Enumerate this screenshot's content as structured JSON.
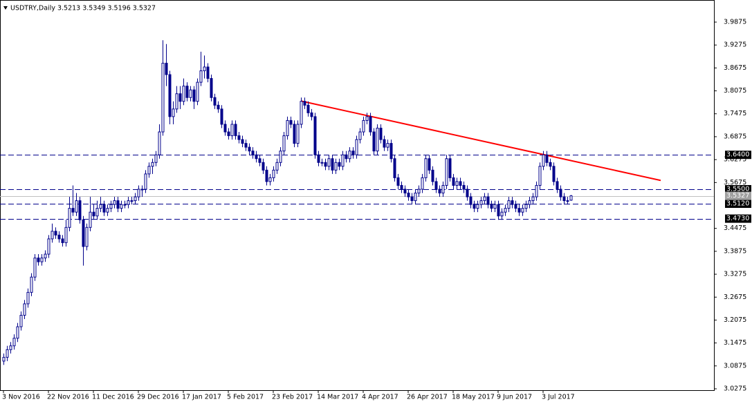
{
  "chart_data": {
    "type": "candlestick",
    "title": "USDTRY,Daily  3.5213 3.5349 3.5196 3.5327",
    "categories": [
      "3 Nov 2016",
      null,
      null,
      null,
      null,
      null,
      null,
      null,
      null,
      null,
      null,
      null,
      null,
      "22 Nov 2016",
      null,
      null,
      null,
      null,
      null,
      null,
      null,
      null,
      null,
      null,
      null,
      null,
      "11 Dec 2016",
      null,
      null,
      null,
      null,
      null,
      null,
      null,
      null,
      null,
      null,
      null,
      null,
      "29 Dec 2016",
      null,
      null,
      null,
      null,
      null,
      null,
      null,
      null,
      null,
      null,
      null,
      null,
      "17 Jan 2017",
      null,
      null,
      null,
      null,
      null,
      null,
      null,
      null,
      null,
      null,
      null,
      null,
      "5 Feb 2017",
      null,
      null,
      null,
      null,
      null,
      null,
      null,
      null,
      null,
      null,
      null,
      null,
      "23 Feb 2017",
      null,
      null,
      null,
      null,
      null,
      null,
      null,
      null,
      null,
      null,
      null,
      null,
      "14 Mar 2017",
      null,
      null,
      null,
      null,
      null,
      null,
      null,
      null,
      null,
      null,
      null,
      null,
      "4 Apr 2017",
      null,
      null,
      null,
      null,
      null,
      null,
      null,
      null,
      null,
      null,
      null,
      null,
      "26 Apr 2017",
      null,
      null,
      null,
      null,
      null,
      null,
      null,
      null,
      null,
      null,
      null,
      null,
      "18 May 2017",
      null,
      null,
      null,
      null,
      null,
      null,
      null,
      null,
      null,
      null,
      null,
      null,
      "9 Jun 2017",
      null,
      null,
      null,
      null,
      null,
      null,
      null,
      null,
      null,
      null,
      null,
      null,
      "3 Jul 2017",
      null,
      null,
      null,
      null,
      null,
      null,
      null,
      null
    ],
    "ohlc": [
      [
        3.1,
        3.12,
        3.09,
        3.11
      ],
      [
        3.11,
        3.14,
        3.1,
        3.13
      ],
      [
        3.13,
        3.15,
        3.12,
        3.14
      ],
      [
        3.14,
        3.17,
        3.13,
        3.16
      ],
      [
        3.16,
        3.2,
        3.15,
        3.19
      ],
      [
        3.19,
        3.23,
        3.18,
        3.22
      ],
      [
        3.22,
        3.26,
        3.21,
        3.25
      ],
      [
        3.25,
        3.29,
        3.24,
        3.28
      ],
      [
        3.28,
        3.33,
        3.27,
        3.32
      ],
      [
        3.32,
        3.38,
        3.31,
        3.37
      ],
      [
        3.37,
        3.38,
        3.35,
        3.36
      ],
      [
        3.36,
        3.38,
        3.35,
        3.37
      ],
      [
        3.37,
        3.39,
        3.36,
        3.38
      ],
      [
        3.38,
        3.43,
        3.37,
        3.42
      ],
      [
        3.42,
        3.46,
        3.41,
        3.44
      ],
      [
        3.44,
        3.45,
        3.42,
        3.43
      ],
      [
        3.43,
        3.44,
        3.41,
        3.42
      ],
      [
        3.42,
        3.43,
        3.4,
        3.41
      ],
      [
        3.41,
        3.47,
        3.4,
        3.45
      ],
      [
        3.45,
        3.53,
        3.44,
        3.5
      ],
      [
        3.5,
        3.56,
        3.48,
        3.49
      ],
      [
        3.49,
        3.54,
        3.48,
        3.52
      ],
      [
        3.52,
        3.53,
        3.46,
        3.47
      ],
      [
        3.47,
        3.48,
        3.35,
        3.4
      ],
      [
        3.4,
        3.46,
        3.39,
        3.45
      ],
      [
        3.45,
        3.53,
        3.44,
        3.49
      ],
      [
        3.49,
        3.51,
        3.47,
        3.48
      ],
      [
        3.48,
        3.52,
        3.47,
        3.5
      ],
      [
        3.5,
        3.53,
        3.49,
        3.51
      ],
      [
        3.51,
        3.52,
        3.48,
        3.49
      ],
      [
        3.49,
        3.51,
        3.48,
        3.5
      ],
      [
        3.5,
        3.52,
        3.49,
        3.51
      ],
      [
        3.51,
        3.53,
        3.5,
        3.52
      ],
      [
        3.52,
        3.53,
        3.49,
        3.5
      ],
      [
        3.5,
        3.52,
        3.49,
        3.51
      ],
      [
        3.51,
        3.52,
        3.5,
        3.51
      ],
      [
        3.51,
        3.53,
        3.5,
        3.52
      ],
      [
        3.52,
        3.53,
        3.51,
        3.52
      ],
      [
        3.52,
        3.54,
        3.51,
        3.53
      ],
      [
        3.53,
        3.56,
        3.52,
        3.55
      ],
      [
        3.55,
        3.56,
        3.53,
        3.55
      ],
      [
        3.55,
        3.6,
        3.54,
        3.59
      ],
      [
        3.59,
        3.62,
        3.58,
        3.61
      ],
      [
        3.61,
        3.63,
        3.59,
        3.62
      ],
      [
        3.62,
        3.65,
        3.61,
        3.64
      ],
      [
        3.64,
        3.72,
        3.63,
        3.7
      ],
      [
        3.7,
        3.94,
        3.69,
        3.88
      ],
      [
        3.88,
        3.93,
        3.82,
        3.85
      ],
      [
        3.85,
        3.86,
        3.72,
        3.74
      ],
      [
        3.74,
        3.78,
        3.72,
        3.76
      ],
      [
        3.76,
        3.82,
        3.75,
        3.8
      ],
      [
        3.8,
        3.82,
        3.76,
        3.78
      ],
      [
        3.78,
        3.84,
        3.77,
        3.82
      ],
      [
        3.82,
        3.83,
        3.78,
        3.79
      ],
      [
        3.79,
        3.82,
        3.78,
        3.81
      ],
      [
        3.81,
        3.82,
        3.76,
        3.78
      ],
      [
        3.78,
        3.84,
        3.77,
        3.83
      ],
      [
        3.83,
        3.91,
        3.82,
        3.86
      ],
      [
        3.86,
        3.9,
        3.84,
        3.87
      ],
      [
        3.87,
        3.88,
        3.83,
        3.84
      ],
      [
        3.84,
        3.85,
        3.78,
        3.79
      ],
      [
        3.79,
        3.8,
        3.76,
        3.77
      ],
      [
        3.77,
        3.78,
        3.75,
        3.76
      ],
      [
        3.76,
        3.77,
        3.71,
        3.72
      ],
      [
        3.72,
        3.73,
        3.69,
        3.7
      ],
      [
        3.7,
        3.71,
        3.68,
        3.69
      ],
      [
        3.69,
        3.73,
        3.68,
        3.72
      ],
      [
        3.72,
        3.73,
        3.68,
        3.69
      ],
      [
        3.69,
        3.7,
        3.67,
        3.68
      ],
      [
        3.68,
        3.69,
        3.66,
        3.67
      ],
      [
        3.67,
        3.68,
        3.65,
        3.66
      ],
      [
        3.66,
        3.67,
        3.64,
        3.65
      ],
      [
        3.65,
        3.66,
        3.63,
        3.64
      ],
      [
        3.64,
        3.65,
        3.62,
        3.63
      ],
      [
        3.63,
        3.64,
        3.61,
        3.62
      ],
      [
        3.62,
        3.63,
        3.59,
        3.6
      ],
      [
        3.6,
        3.61,
        3.56,
        3.57
      ],
      [
        3.57,
        3.59,
        3.56,
        3.58
      ],
      [
        3.58,
        3.61,
        3.57,
        3.6
      ],
      [
        3.6,
        3.63,
        3.59,
        3.62
      ],
      [
        3.62,
        3.66,
        3.61,
        3.65
      ],
      [
        3.65,
        3.7,
        3.64,
        3.69
      ],
      [
        3.69,
        3.74,
        3.68,
        3.73
      ],
      [
        3.73,
        3.74,
        3.71,
        3.72
      ],
      [
        3.72,
        3.73,
        3.66,
        3.67
      ],
      [
        3.67,
        3.73,
        3.66,
        3.72
      ],
      [
        3.72,
        3.79,
        3.71,
        3.78
      ],
      [
        3.78,
        3.79,
        3.76,
        3.77
      ],
      [
        3.77,
        3.78,
        3.74,
        3.75
      ],
      [
        3.75,
        3.76,
        3.73,
        3.74
      ],
      [
        3.74,
        3.75,
        3.63,
        3.64
      ],
      [
        3.64,
        3.65,
        3.61,
        3.62
      ],
      [
        3.62,
        3.63,
        3.61,
        3.62
      ],
      [
        3.62,
        3.63,
        3.6,
        3.61
      ],
      [
        3.61,
        3.64,
        3.6,
        3.63
      ],
      [
        3.63,
        3.64,
        3.59,
        3.6
      ],
      [
        3.6,
        3.63,
        3.59,
        3.62
      ],
      [
        3.62,
        3.63,
        3.6,
        3.61
      ],
      [
        3.61,
        3.65,
        3.6,
        3.64
      ],
      [
        3.64,
        3.65,
        3.62,
        3.63
      ],
      [
        3.63,
        3.66,
        3.62,
        3.65
      ],
      [
        3.65,
        3.66,
        3.63,
        3.64
      ],
      [
        3.64,
        3.69,
        3.63,
        3.68
      ],
      [
        3.68,
        3.71,
        3.67,
        3.7
      ],
      [
        3.7,
        3.74,
        3.69,
        3.73
      ],
      [
        3.73,
        3.75,
        3.72,
        3.74
      ],
      [
        3.74,
        3.75,
        3.69,
        3.7
      ],
      [
        3.7,
        3.71,
        3.64,
        3.65
      ],
      [
        3.65,
        3.72,
        3.64,
        3.71
      ],
      [
        3.71,
        3.72,
        3.67,
        3.68
      ],
      [
        3.68,
        3.69,
        3.65,
        3.66
      ],
      [
        3.66,
        3.68,
        3.65,
        3.67
      ],
      [
        3.67,
        3.68,
        3.62,
        3.63
      ],
      [
        3.63,
        3.64,
        3.57,
        3.58
      ],
      [
        3.58,
        3.59,
        3.55,
        3.56
      ],
      [
        3.56,
        3.57,
        3.54,
        3.55
      ],
      [
        3.55,
        3.56,
        3.53,
        3.54
      ],
      [
        3.54,
        3.55,
        3.52,
        3.53
      ],
      [
        3.53,
        3.54,
        3.51,
        3.52
      ],
      [
        3.52,
        3.55,
        3.51,
        3.54
      ],
      [
        3.54,
        3.56,
        3.53,
        3.55
      ],
      [
        3.55,
        3.59,
        3.54,
        3.58
      ],
      [
        3.58,
        3.64,
        3.57,
        3.63
      ],
      [
        3.63,
        3.64,
        3.59,
        3.6
      ],
      [
        3.6,
        3.61,
        3.56,
        3.57
      ],
      [
        3.57,
        3.58,
        3.54,
        3.55
      ],
      [
        3.55,
        3.56,
        3.53,
        3.54
      ],
      [
        3.54,
        3.57,
        3.53,
        3.56
      ],
      [
        3.56,
        3.64,
        3.55,
        3.63
      ],
      [
        3.63,
        3.64,
        3.57,
        3.58
      ],
      [
        3.58,
        3.59,
        3.55,
        3.56
      ],
      [
        3.56,
        3.58,
        3.55,
        3.57
      ],
      [
        3.57,
        3.58,
        3.55,
        3.56
      ],
      [
        3.56,
        3.57,
        3.54,
        3.55
      ],
      [
        3.55,
        3.56,
        3.52,
        3.53
      ],
      [
        3.53,
        3.54,
        3.5,
        3.51
      ],
      [
        3.51,
        3.52,
        3.49,
        3.5
      ],
      [
        3.5,
        3.52,
        3.49,
        3.51
      ],
      [
        3.51,
        3.53,
        3.5,
        3.52
      ],
      [
        3.52,
        3.54,
        3.51,
        3.53
      ],
      [
        3.53,
        3.54,
        3.5,
        3.51
      ],
      [
        3.51,
        3.52,
        3.49,
        3.5
      ],
      [
        3.5,
        3.52,
        3.49,
        3.51
      ],
      [
        3.51,
        3.52,
        3.47,
        3.48
      ],
      [
        3.48,
        3.5,
        3.47,
        3.49
      ],
      [
        3.49,
        3.51,
        3.48,
        3.5
      ],
      [
        3.5,
        3.53,
        3.49,
        3.52
      ],
      [
        3.52,
        3.53,
        3.5,
        3.51
      ],
      [
        3.51,
        3.52,
        3.49,
        3.5
      ],
      [
        3.5,
        3.51,
        3.48,
        3.49
      ],
      [
        3.49,
        3.51,
        3.48,
        3.5
      ],
      [
        3.5,
        3.52,
        3.49,
        3.51
      ],
      [
        3.51,
        3.53,
        3.5,
        3.52
      ],
      [
        3.52,
        3.54,
        3.51,
        3.53
      ],
      [
        3.53,
        3.57,
        3.52,
        3.56
      ],
      [
        3.56,
        3.62,
        3.55,
        3.61
      ],
      [
        3.61,
        3.65,
        3.6,
        3.64
      ],
      [
        3.64,
        3.65,
        3.61,
        3.62
      ],
      [
        3.62,
        3.63,
        3.6,
        3.61
      ],
      [
        3.61,
        3.62,
        3.56,
        3.57
      ],
      [
        3.57,
        3.58,
        3.54,
        3.55
      ],
      [
        3.55,
        3.56,
        3.52,
        3.53
      ],
      [
        3.53,
        3.54,
        3.51,
        3.52
      ],
      [
        3.52,
        3.53,
        3.51,
        3.52
      ],
      [
        3.5213,
        3.5349,
        3.5196,
        3.5327
      ]
    ],
    "color": "#00008b",
    "ylim": [
      3.0239,
      4.0363
    ],
    "yticks": [
      3.0275,
      3.0875,
      3.1475,
      3.2075,
      3.2675,
      3.3275,
      3.3875,
      3.4475,
      3.5675,
      3.6275,
      3.6875,
      3.7475,
      3.8075,
      3.8675,
      3.9275,
      3.9875
    ],
    "levels": [
      {
        "value": 3.64,
        "label": "3.6400"
      },
      {
        "value": 3.55,
        "label": "3.5500"
      },
      {
        "value": 3.512,
        "label": "3.5120"
      },
      {
        "value": 3.473,
        "label": "3.4730"
      }
    ],
    "level_color": "#00008b",
    "last_price": 3.5327,
    "trendline": {
      "x": [
        86,
        190
      ],
      "y": [
        3.781,
        3.573
      ],
      "color": "#ff0000"
    }
  }
}
